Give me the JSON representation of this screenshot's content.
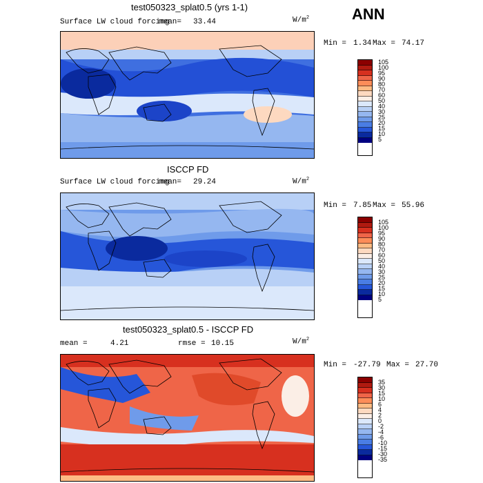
{
  "season": "ANN",
  "panels": [
    {
      "title": "test050323_splat0.5 (yrs 1-1)",
      "field": "Surface LW cloud forcing",
      "mean_label": "mean=",
      "mean": "33.44",
      "units": "W/m",
      "units_sup": "2",
      "min_label": "Min =",
      "min": "1.34",
      "max_label": "Max =",
      "max": "74.17",
      "levels": [
        "105",
        "100",
        "95",
        "90",
        "80",
        "70",
        "60",
        "50",
        "40",
        "30",
        "25",
        "20",
        "15",
        "10",
        "5"
      ]
    },
    {
      "title": "ISCCP FD",
      "field": "Surface LW cloud forcing",
      "mean_label": "mean=",
      "mean": "29.24",
      "units": "W/m",
      "units_sup": "2",
      "min_label": "Min =",
      "min": "7.85",
      "max_label": "Max =",
      "max": "55.96",
      "levels": [
        "105",
        "100",
        "95",
        "90",
        "80",
        "70",
        "60",
        "50",
        "40",
        "30",
        "25",
        "20",
        "15",
        "10",
        "5"
      ]
    },
    {
      "title": "test050323_splat0.5 - ISCCP FD",
      "mean_label": "mean =",
      "mean": "4.21",
      "rmse_label": "rmse =",
      "rmse": "10.15",
      "units": "W/m",
      "units_sup": "2",
      "min_label": "Min =",
      "min": "-27.79",
      "max_label": "Max =",
      "max": "27.70",
      "levels": [
        "35",
        "30",
        "15",
        "10",
        "6",
        "4",
        "2",
        "0",
        "-2",
        "-4",
        "-6",
        "-10",
        "-15",
        "-30",
        "-35"
      ]
    }
  ],
  "colors": {
    "abs_scale": [
      "#8b0000",
      "#b01a10",
      "#d7301f",
      "#ef6548",
      "#fc8d59",
      "#fdbb84",
      "#fdd9c0",
      "#fbeee6",
      "#dbe8fb",
      "#b8d0f6",
      "#95b7f0",
      "#6f9bea",
      "#4a7de4",
      "#2656d9",
      "#0a2a9e",
      "#000080"
    ],
    "diff_scale": [
      "#8b0000",
      "#b01a10",
      "#d7301f",
      "#ef6548",
      "#fc8d59",
      "#fdbb84",
      "#fdd9c0",
      "#fbeee6",
      "#dbe8fb",
      "#b8d0f6",
      "#95b7f0",
      "#6f9bea",
      "#4a7de4",
      "#2656d9",
      "#0a2a9e",
      "#000080"
    ]
  }
}
